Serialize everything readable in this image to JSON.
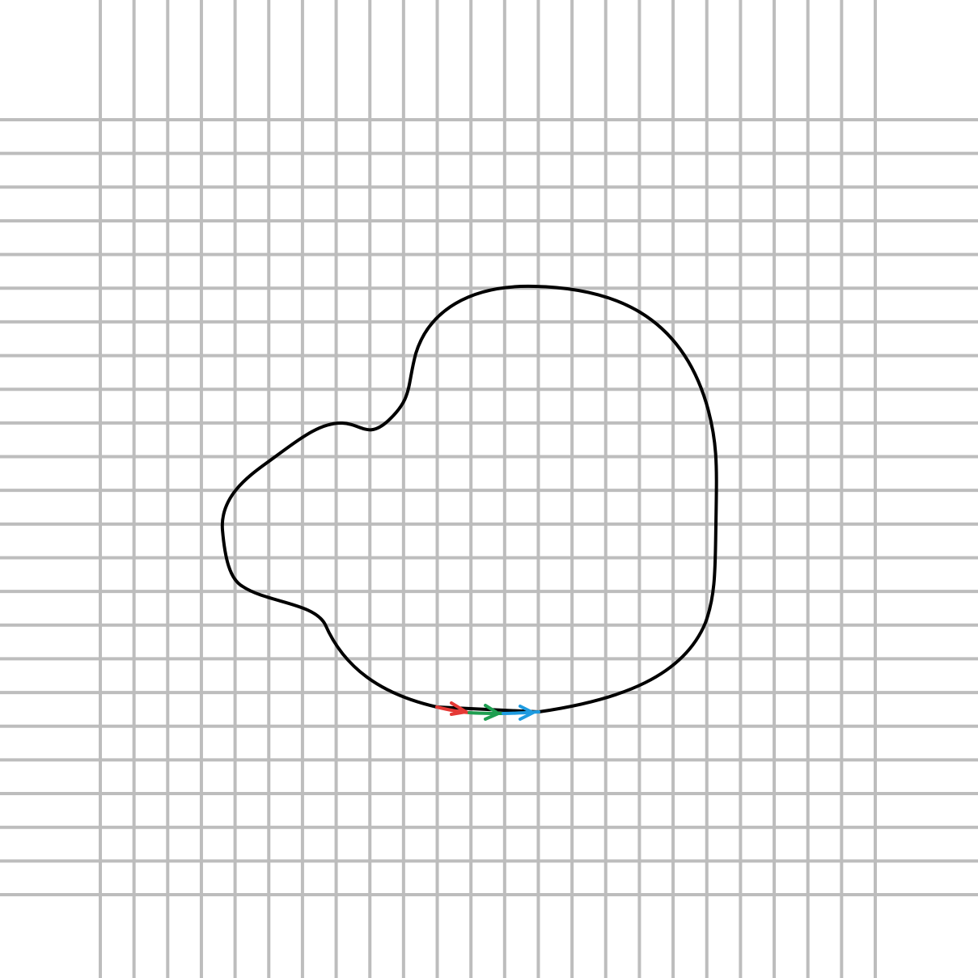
{
  "diagram": {
    "background": "#ffffff",
    "grid_color": "#bdbdbd",
    "curve_color": "#000000",
    "grid": {
      "vertical_lines": 24,
      "horizontal_lines": 24
    },
    "closed_curve": {
      "shape": "closed loop",
      "stroke": "#000000"
    },
    "direction_arrows": [
      {
        "color_name": "red",
        "color": "#e53935",
        "icon": "arrow-right-icon"
      },
      {
        "color_name": "green",
        "color": "#1e9e50",
        "icon": "arrow-right-icon"
      },
      {
        "color_name": "blue",
        "color": "#1e9be0",
        "icon": "arrow-right-icon"
      }
    ]
  }
}
